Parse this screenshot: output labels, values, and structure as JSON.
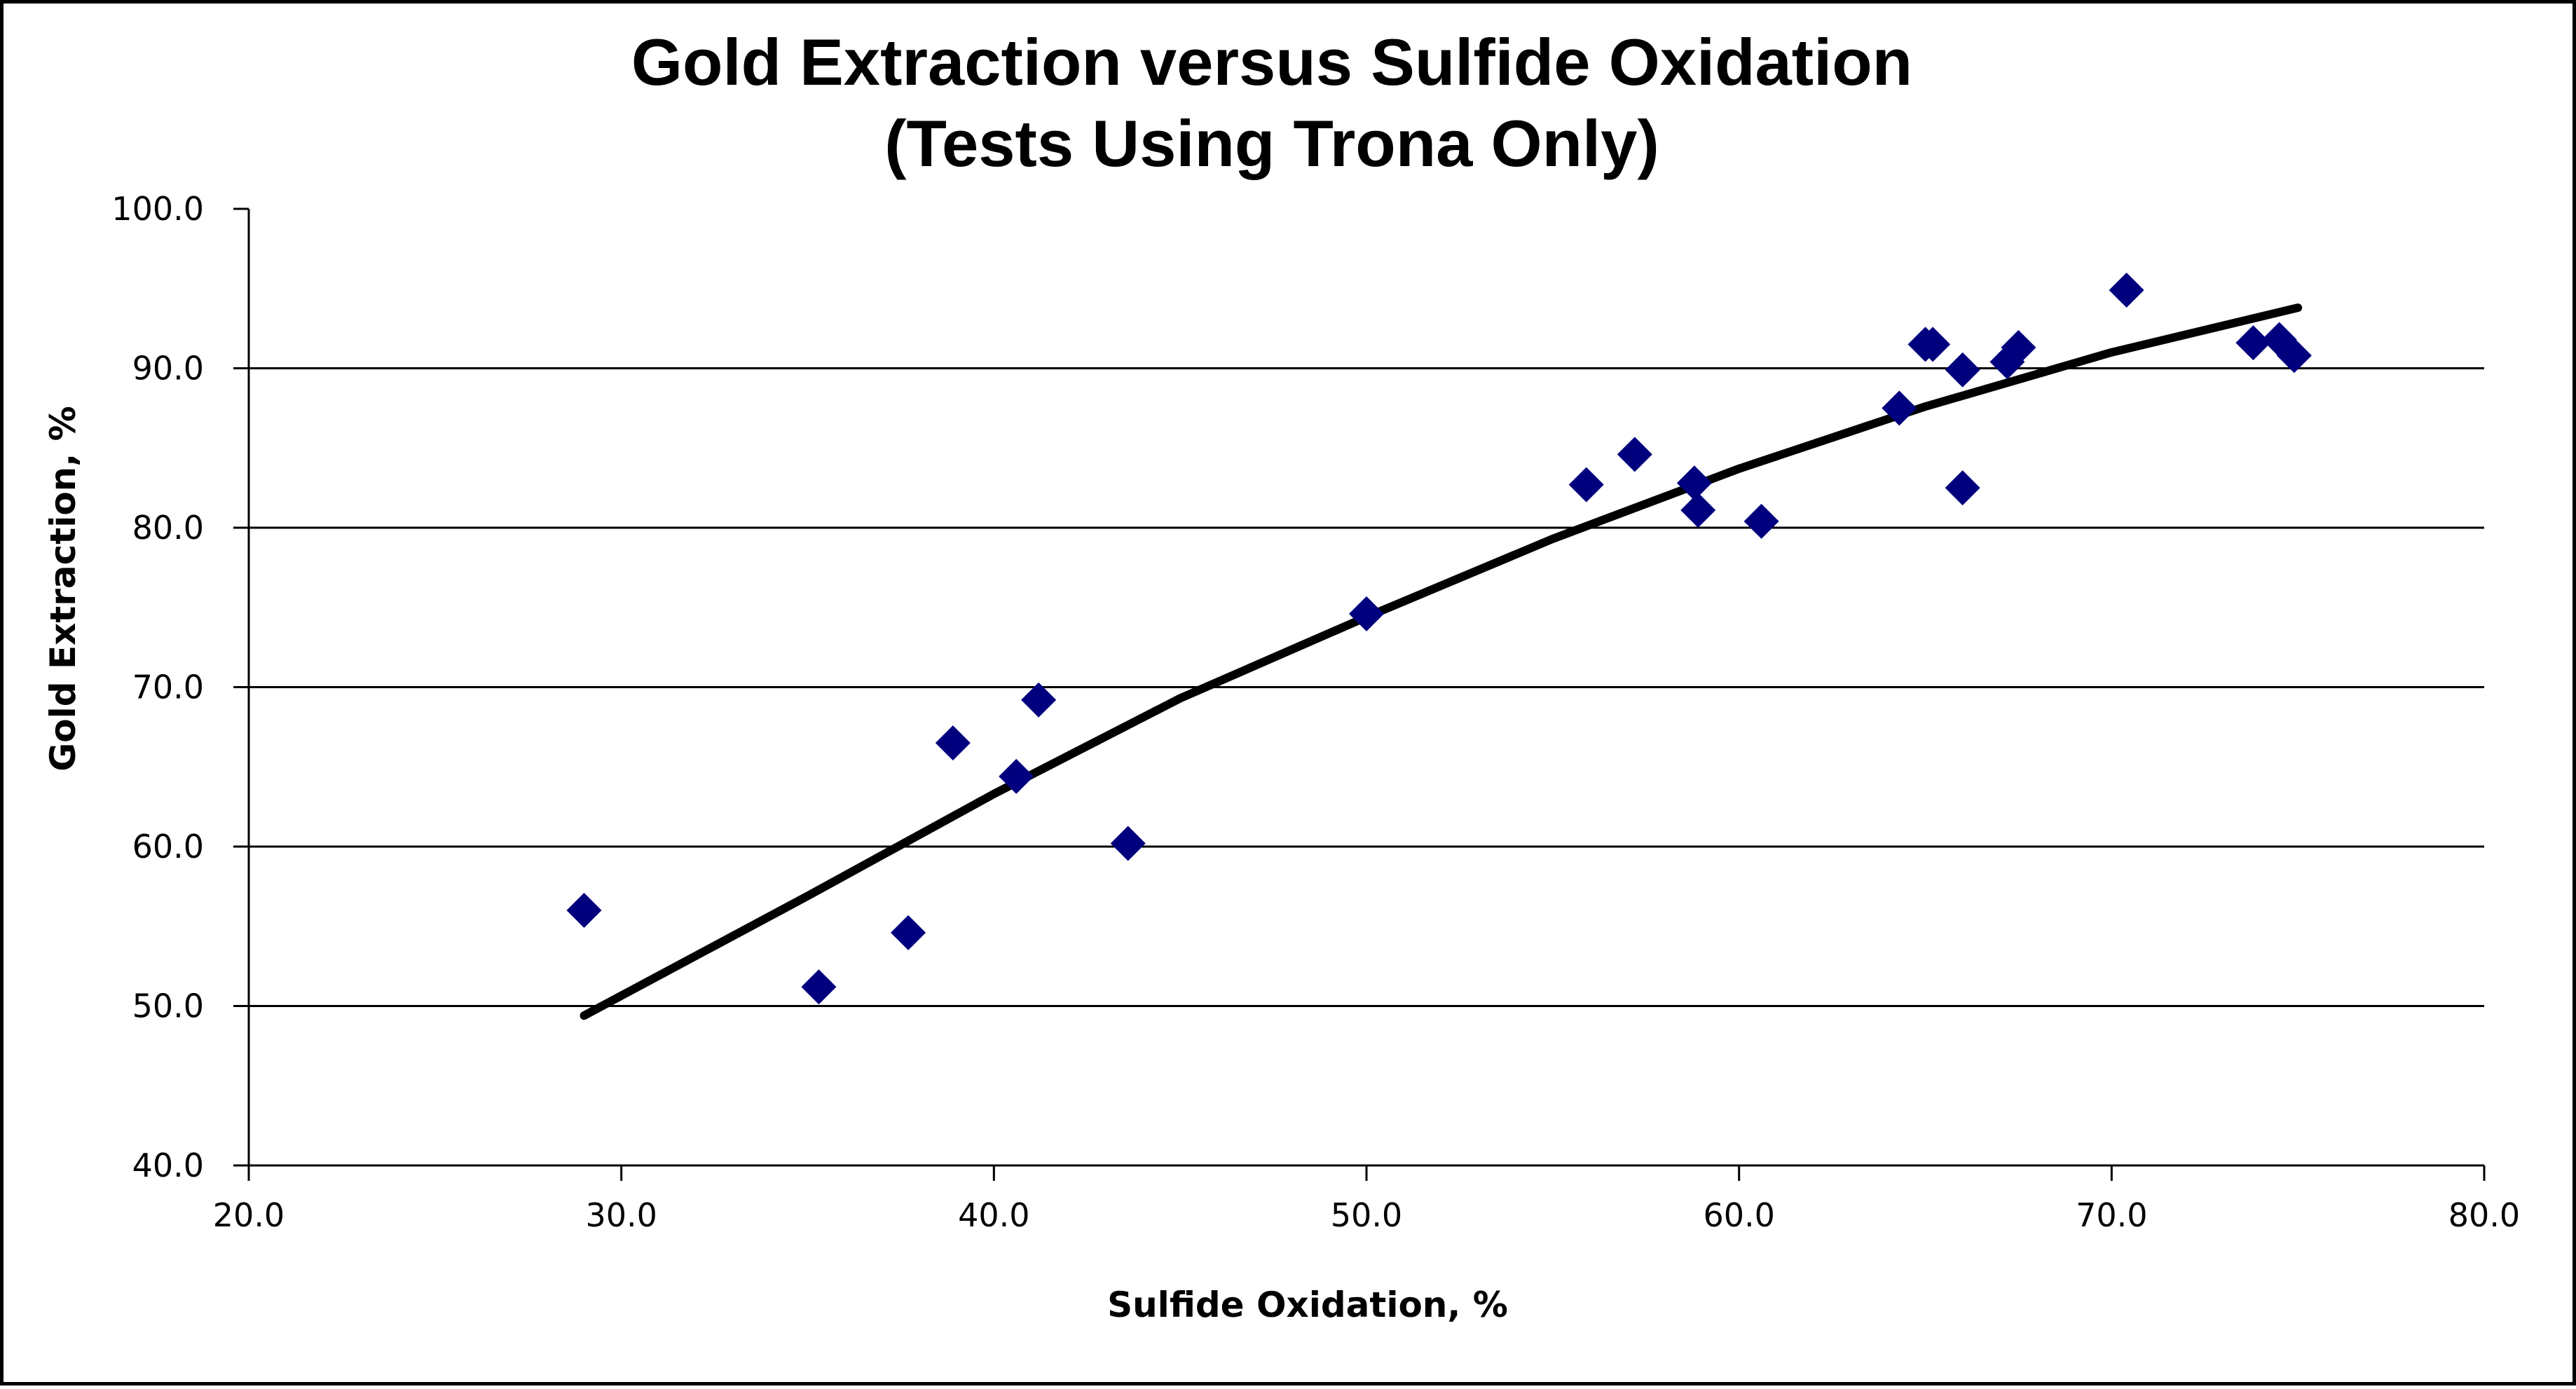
{
  "chart_data": {
    "type": "scatter",
    "title_lines": [
      "Gold Extraction versus Sulfide Oxidation",
      "(Tests Using Trona Only)"
    ],
    "xlabel": "Sulfide Oxidation, %",
    "ylabel": "Gold Extraction, %",
    "xlim": [
      20,
      80
    ],
    "ylim": [
      40,
      100
    ],
    "x_ticks": [
      "20.0",
      "30.0",
      "40.0",
      "50.0",
      "60.0",
      "70.0",
      "80.0"
    ],
    "y_ticks": [
      "40.0",
      "50.0",
      "60.0",
      "70.0",
      "80.0",
      "90.0",
      "100.0"
    ],
    "grid": "horizontal major gridlines",
    "legend": "none",
    "marker": "diamond",
    "marker_color": "#00007F",
    "trend_color": "#000000",
    "series": [
      {
        "points": [
          [
            29.0,
            56.0
          ],
          [
            35.3,
            51.2
          ],
          [
            37.7,
            54.6
          ],
          [
            38.9,
            66.5
          ],
          [
            40.6,
            64.4
          ],
          [
            41.2,
            69.2
          ],
          [
            43.6,
            60.2
          ],
          [
            50.0,
            74.6
          ],
          [
            55.9,
            82.7
          ],
          [
            57.2,
            84.6
          ],
          [
            58.8,
            82.8
          ],
          [
            58.9,
            81.1
          ],
          [
            60.6,
            80.4
          ],
          [
            64.3,
            87.5
          ],
          [
            65.0,
            91.5
          ],
          [
            65.2,
            91.5
          ],
          [
            66.0,
            89.9
          ],
          [
            66.0,
            82.5
          ],
          [
            67.2,
            90.4
          ],
          [
            67.5,
            91.3
          ],
          [
            70.4,
            94.9
          ],
          [
            73.8,
            91.6
          ],
          [
            74.5,
            91.8
          ],
          [
            74.9,
            90.8
          ]
        ]
      }
    ],
    "trendline": {
      "type": "polynomial",
      "points": [
        [
          29.0,
          49.4
        ],
        [
          35.0,
          56.9
        ],
        [
          40.0,
          63.3
        ],
        [
          45.0,
          69.3
        ],
        [
          50.0,
          74.4
        ],
        [
          55.0,
          79.3
        ],
        [
          60.0,
          83.7
        ],
        [
          65.0,
          87.6
        ],
        [
          70.0,
          91.0
        ],
        [
          75.0,
          93.8
        ]
      ]
    }
  }
}
